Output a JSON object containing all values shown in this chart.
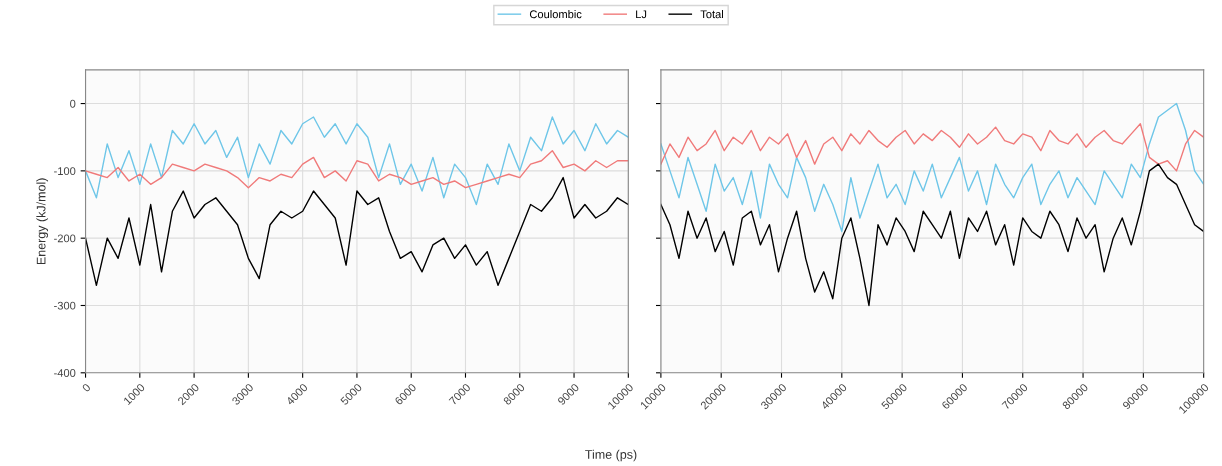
{
  "chart_data": [
    {
      "type": "line",
      "ylabel": "Energy (kJ/mol)",
      "xlabel": "Time (ps)",
      "legend": "top",
      "grid": true,
      "line_style": "solid",
      "xlim": [
        0,
        10000
      ],
      "xticks": [
        0,
        1000,
        2000,
        3000,
        4000,
        5000,
        6000,
        7000,
        8000,
        9000,
        10000
      ],
      "ylim": [
        -400,
        50
      ],
      "yticks": [
        -400,
        -300,
        -200,
        -100,
        0
      ],
      "x": [
        0,
        200,
        400,
        600,
        800,
        1000,
        1200,
        1400,
        1600,
        1800,
        2000,
        2200,
        2400,
        2600,
        2800,
        3000,
        3200,
        3400,
        3600,
        3800,
        4000,
        4200,
        4400,
        4600,
        4800,
        5000,
        5200,
        5400,
        5600,
        5800,
        6000,
        6200,
        6400,
        6600,
        6800,
        7000,
        7200,
        7400,
        7600,
        7800,
        8000,
        8200,
        8400,
        8600,
        8800,
        9000,
        9200,
        9400,
        9600,
        9800,
        10000
      ],
      "series": [
        {
          "name": "Coulombic",
          "color": "#6ec6e8",
          "values": [
            -100,
            -140,
            -60,
            -110,
            -70,
            -120,
            -60,
            -110,
            -40,
            -60,
            -30,
            -60,
            -40,
            -80,
            -50,
            -110,
            -60,
            -90,
            -40,
            -60,
            -30,
            -20,
            -50,
            -30,
            -60,
            -30,
            -50,
            -110,
            -60,
            -120,
            -90,
            -130,
            -80,
            -140,
            -90,
            -110,
            -150,
            -90,
            -120,
            -60,
            -100,
            -50,
            -70,
            -20,
            -60,
            -40,
            -70,
            -30,
            -60,
            -40,
            -50
          ]
        },
        {
          "name": "LJ",
          "color": "#f07a7a",
          "values": [
            -100,
            -105,
            -110,
            -95,
            -115,
            -105,
            -120,
            -110,
            -90,
            -95,
            -100,
            -90,
            -95,
            -100,
            -110,
            -125,
            -110,
            -115,
            -105,
            -110,
            -90,
            -80,
            -110,
            -100,
            -115,
            -85,
            -90,
            -115,
            -105,
            -110,
            -120,
            -115,
            -110,
            -120,
            -115,
            -125,
            -120,
            -115,
            -110,
            -105,
            -110,
            -90,
            -85,
            -70,
            -95,
            -90,
            -100,
            -85,
            -95,
            -85,
            -85
          ]
        },
        {
          "name": "Total",
          "color": "#000000",
          "values": [
            -200,
            -270,
            -200,
            -230,
            -170,
            -240,
            -150,
            -250,
            -160,
            -130,
            -170,
            -150,
            -140,
            -160,
            -180,
            -230,
            -260,
            -180,
            -160,
            -170,
            -160,
            -130,
            -150,
            -170,
            -240,
            -130,
            -150,
            -140,
            -190,
            -230,
            -220,
            -250,
            -210,
            -200,
            -230,
            -210,
            -240,
            -220,
            -270,
            -230,
            -190,
            -150,
            -160,
            -140,
            -110,
            -170,
            -150,
            -170,
            -160,
            -140,
            -150
          ]
        }
      ]
    },
    {
      "type": "line",
      "grid": true,
      "line_style": "solid",
      "tick_labels": "x",
      "xlim": [
        10000,
        100000
      ],
      "xticks": [
        10000,
        20000,
        30000,
        40000,
        50000,
        60000,
        70000,
        80000,
        90000,
        100000
      ],
      "ylim": [
        -400,
        50
      ],
      "yticks": [
        -400,
        -300,
        -200,
        -100,
        0
      ],
      "x": [
        10000,
        11500,
        13000,
        14500,
        16000,
        17500,
        19000,
        20500,
        22000,
        23500,
        25000,
        26500,
        28000,
        29500,
        31000,
        32500,
        34000,
        35500,
        37000,
        38500,
        40000,
        41500,
        43000,
        44500,
        46000,
        47500,
        49000,
        50500,
        52000,
        53500,
        55000,
        56500,
        58000,
        59500,
        61000,
        62500,
        64000,
        65500,
        67000,
        68500,
        70000,
        71500,
        73000,
        74500,
        76000,
        77500,
        79000,
        80500,
        82000,
        83500,
        85000,
        86500,
        88000,
        89500,
        91000,
        92500,
        94000,
        95500,
        97000,
        98500,
        100000
      ],
      "series": [
        {
          "color": "#6ec6e8",
          "values": [
            -60,
            -100,
            -140,
            -80,
            -120,
            -160,
            -90,
            -130,
            -110,
            -150,
            -100,
            -170,
            -90,
            -120,
            -140,
            -80,
            -110,
            -160,
            -120,
            -150,
            -190,
            -110,
            -170,
            -130,
            -90,
            -140,
            -120,
            -150,
            -100,
            -130,
            -90,
            -140,
            -110,
            -80,
            -130,
            -100,
            -150,
            -90,
            -120,
            -140,
            -110,
            -90,
            -150,
            -120,
            -100,
            -140,
            -110,
            -130,
            -150,
            -100,
            -120,
            -140,
            -90,
            -110,
            -60,
            -20,
            -10,
            0,
            -40,
            -100,
            -120
          ]
        },
        {
          "color": "#f07a7a",
          "values": [
            -90,
            -60,
            -80,
            -50,
            -70,
            -60,
            -40,
            -70,
            -50,
            -60,
            -40,
            -70,
            -50,
            -60,
            -45,
            -80,
            -55,
            -90,
            -60,
            -50,
            -70,
            -45,
            -60,
            -40,
            -55,
            -65,
            -50,
            -40,
            -60,
            -45,
            -55,
            -40,
            -50,
            -65,
            -45,
            -60,
            -50,
            -35,
            -55,
            -60,
            -45,
            -50,
            -70,
            -40,
            -55,
            -60,
            -45,
            -65,
            -50,
            -40,
            -55,
            -60,
            -45,
            -30,
            -80,
            -90,
            -85,
            -100,
            -60,
            -40,
            -50
          ]
        },
        {
          "color": "#000000",
          "values": [
            -150,
            -180,
            -230,
            -160,
            -200,
            -170,
            -220,
            -190,
            -240,
            -170,
            -160,
            -210,
            -180,
            -250,
            -200,
            -160,
            -230,
            -280,
            -250,
            -290,
            -200,
            -170,
            -230,
            -300,
            -180,
            -210,
            -170,
            -190,
            -220,
            -160,
            -180,
            -200,
            -160,
            -230,
            -170,
            -190,
            -160,
            -210,
            -180,
            -240,
            -170,
            -190,
            -200,
            -160,
            -180,
            -220,
            -170,
            -200,
            -180,
            -250,
            -200,
            -170,
            -210,
            -160,
            -100,
            -90,
            -110,
            -120,
            -150,
            -180,
            -190
          ]
        }
      ]
    }
  ]
}
